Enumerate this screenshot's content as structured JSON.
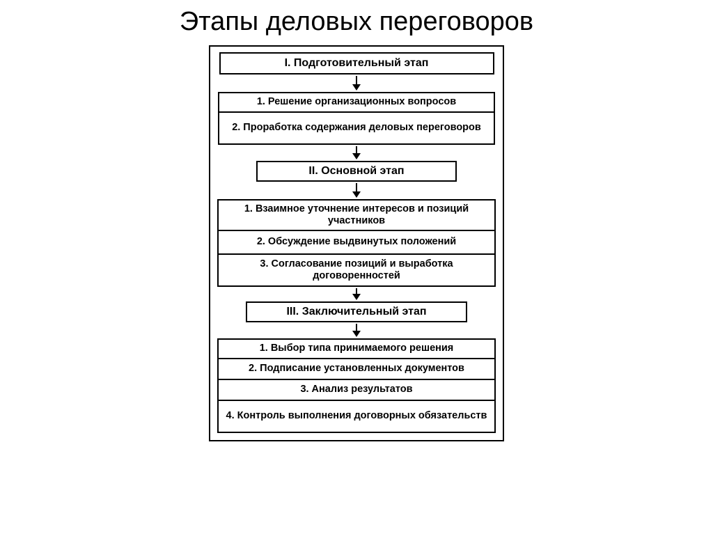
{
  "title": "Этапы деловых переговоров",
  "flowchart": {
    "type": "flowchart",
    "background_color": "#ffffff",
    "border_color": "#000000",
    "text_color": "#000000",
    "title_fontsize": 38,
    "box_font_weight": "bold",
    "widths": {
      "stage1_header": 395,
      "stage1_group": 398,
      "stage2_header": 288,
      "stage2_group": 400,
      "stage3_header": 318,
      "stage3_group": 400
    },
    "heights": {
      "stage1_header": 32,
      "stage2_header": 30,
      "stage3_header": 30
    },
    "arrow_heights": {
      "after_stage1_header": 12,
      "after_stage1_group": 10,
      "after_stage2_header": 12,
      "after_stage2_group": 8,
      "after_stage3_header": 10
    },
    "stage1": {
      "header": "I. Подготовительный этап",
      "items": [
        "1. Решение организационных вопросов",
        "2. Проработка содержания деловых переговоров"
      ]
    },
    "stage2": {
      "header": "II. Основной этап",
      "items": [
        "1. Взаимное уточнение интересов и позиций участников",
        "2. Обсуждение выдвинутых положений",
        "3. Согласование позиций и выработка договоренностей"
      ]
    },
    "stage3": {
      "header": "III. Заключительный этап",
      "items": [
        "1. Выбор типа принимаемого решения",
        "2. Подписание установленных документов",
        "3. Анализ результатов",
        "4. Контроль выполнения договорных обязательств"
      ]
    }
  }
}
